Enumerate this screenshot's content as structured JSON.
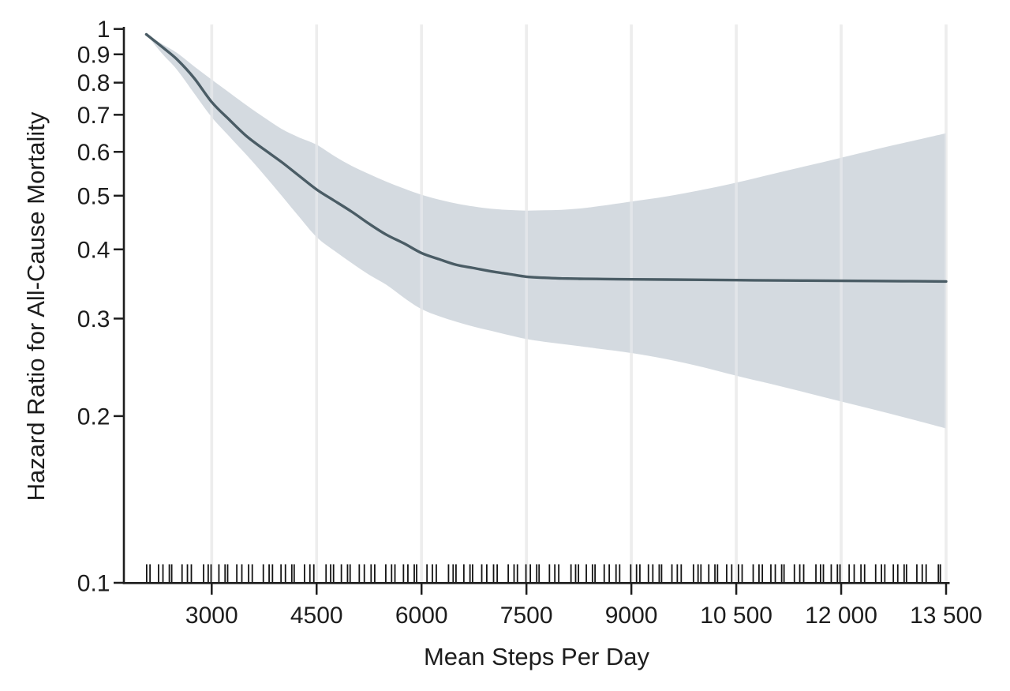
{
  "colors": {
    "background": "#ffffff",
    "curve": "#4a5c65",
    "band_fill": "#cdd3da",
    "band_opacity": 0.85,
    "gridline": "#e3e3e3",
    "axis": "#1d1d1d",
    "rug": "#141414",
    "text": "#1d1d1d"
  },
  "chart_data": {
    "type": "line",
    "title": "",
    "xlabel": "Mean Steps Per Day",
    "ylabel": "Hazard Ratio for All-Cause Mortality",
    "x_axis": {
      "scale": "linear",
      "domain": [
        1733,
        13557
      ],
      "ticks": [
        {
          "value": 3000,
          "label": "3000"
        },
        {
          "value": 4500,
          "label": "4500"
        },
        {
          "value": 6000,
          "label": "6000"
        },
        {
          "value": 7500,
          "label": "7500"
        },
        {
          "value": 9000,
          "label": "9000"
        },
        {
          "value": 10500,
          "label": "10 500"
        },
        {
          "value": 12000,
          "label": "12 000"
        },
        {
          "value": 13500,
          "label": "13 500"
        }
      ]
    },
    "y_axis": {
      "scale": "log10",
      "domain": [
        0.1,
        1
      ],
      "ticks": [
        {
          "value": 1.0,
          "label": "1"
        },
        {
          "value": 0.9,
          "label": "0.9"
        },
        {
          "value": 0.8,
          "label": "0.8"
        },
        {
          "value": 0.7,
          "label": "0.7"
        },
        {
          "value": 0.6,
          "label": "0.6"
        },
        {
          "value": 0.5,
          "label": "0.5"
        },
        {
          "value": 0.4,
          "label": "0.4"
        },
        {
          "value": 0.3,
          "label": "0.3"
        },
        {
          "value": 0.2,
          "label": "0.2"
        },
        {
          "value": 0.1,
          "label": "0.1"
        }
      ]
    },
    "grid": {
      "vertical_at_x_ticks": true,
      "horizontal": false
    },
    "legend": "none",
    "series": [
      {
        "name": "hazard-ratio-spline",
        "points": [
          [
            2065,
            0.978
          ],
          [
            2300,
            0.926
          ],
          [
            2500,
            0.882
          ],
          [
            2750,
            0.815
          ],
          [
            3000,
            0.738
          ],
          [
            3250,
            0.686
          ],
          [
            3500,
            0.64
          ],
          [
            3750,
            0.606
          ],
          [
            4000,
            0.575
          ],
          [
            4250,
            0.543
          ],
          [
            4500,
            0.513
          ],
          [
            4750,
            0.49
          ],
          [
            5000,
            0.468
          ],
          [
            5250,
            0.445
          ],
          [
            5500,
            0.425
          ],
          [
            5750,
            0.41
          ],
          [
            6000,
            0.394
          ],
          [
            6250,
            0.384
          ],
          [
            6500,
            0.375
          ],
          [
            6750,
            0.37
          ],
          [
            7000,
            0.365
          ],
          [
            7250,
            0.361
          ],
          [
            7500,
            0.357
          ],
          [
            7750,
            0.3555
          ],
          [
            8000,
            0.3545
          ],
          [
            8250,
            0.354
          ],
          [
            8500,
            0.3537
          ],
          [
            9000,
            0.3532
          ],
          [
            9500,
            0.3528
          ],
          [
            10000,
            0.3525
          ],
          [
            10500,
            0.352
          ],
          [
            11000,
            0.3516
          ],
          [
            11500,
            0.3513
          ],
          [
            12000,
            0.351
          ],
          [
            12500,
            0.3507
          ],
          [
            13000,
            0.3504
          ],
          [
            13500,
            0.35
          ]
        ]
      }
    ],
    "confidence_band": {
      "name": "95-percent-ci",
      "upper": [
        [
          2065,
          0.978
        ],
        [
          2300,
          0.938
        ],
        [
          2500,
          0.906
        ],
        [
          2750,
          0.856
        ],
        [
          3000,
          0.81
        ],
        [
          3250,
          0.768
        ],
        [
          3500,
          0.728
        ],
        [
          3750,
          0.692
        ],
        [
          4000,
          0.66
        ],
        [
          4250,
          0.637
        ],
        [
          4500,
          0.618
        ],
        [
          4750,
          0.59
        ],
        [
          5000,
          0.566
        ],
        [
          5250,
          0.547
        ],
        [
          5500,
          0.53
        ],
        [
          5750,
          0.515
        ],
        [
          6000,
          0.502
        ],
        [
          6250,
          0.492
        ],
        [
          6500,
          0.484
        ],
        [
          6750,
          0.478
        ],
        [
          7000,
          0.4735
        ],
        [
          7250,
          0.4712
        ],
        [
          7500,
          0.47
        ],
        [
          7750,
          0.4705
        ],
        [
          8000,
          0.4715
        ],
        [
          8250,
          0.474
        ],
        [
          8500,
          0.478
        ],
        [
          9000,
          0.488
        ],
        [
          9500,
          0.4985
        ],
        [
          10000,
          0.512
        ],
        [
          10500,
          0.528
        ],
        [
          11000,
          0.5465
        ],
        [
          11500,
          0.5655
        ],
        [
          12000,
          0.5855
        ],
        [
          12500,
          0.6065
        ],
        [
          13000,
          0.627
        ],
        [
          13500,
          0.648
        ]
      ],
      "lower": [
        [
          2065,
          0.978
        ],
        [
          2300,
          0.9
        ],
        [
          2500,
          0.845
        ],
        [
          2750,
          0.765
        ],
        [
          3000,
          0.693
        ],
        [
          3250,
          0.64
        ],
        [
          3500,
          0.592
        ],
        [
          3750,
          0.545
        ],
        [
          4000,
          0.5
        ],
        [
          4250,
          0.458
        ],
        [
          4500,
          0.421
        ],
        [
          4750,
          0.398
        ],
        [
          5000,
          0.378
        ],
        [
          5250,
          0.36
        ],
        [
          5500,
          0.345
        ],
        [
          5750,
          0.327
        ],
        [
          6000,
          0.312
        ],
        [
          6250,
          0.303
        ],
        [
          6500,
          0.296
        ],
        [
          6750,
          0.29
        ],
        [
          7000,
          0.285
        ],
        [
          7250,
          0.28
        ],
        [
          7500,
          0.2755
        ],
        [
          7750,
          0.2725
        ],
        [
          8000,
          0.27
        ],
        [
          8250,
          0.2675
        ],
        [
          8500,
          0.265
        ],
        [
          9000,
          0.26
        ],
        [
          9500,
          0.2535
        ],
        [
          10000,
          0.2455
        ],
        [
          10500,
          0.2365
        ],
        [
          11000,
          0.2285
        ],
        [
          11500,
          0.2205
        ],
        [
          12000,
          0.2125
        ],
        [
          12500,
          0.205
        ],
        [
          13000,
          0.1975
        ],
        [
          13500,
          0.19
        ]
      ]
    },
    "rug": {
      "name": "participant-step-counts",
      "steps": [
        2070,
        2118,
        2240,
        2303,
        2394,
        2428,
        2576,
        2653,
        2709,
        2884,
        2950,
        2991,
        3103,
        3191,
        3228,
        3359,
        3431,
        3528,
        3580,
        3738,
        3821,
        3869,
        3991,
        4054,
        4145,
        4179,
        4327,
        4404,
        4460,
        4635,
        4701,
        4742,
        4854,
        4942,
        4979,
        5110,
        5182,
        5279,
        5331,
        5489,
        5572,
        5620,
        5742,
        5805,
        5896,
        5930,
        6078,
        6155,
        6211,
        6386,
        6452,
        6493,
        6605,
        6693,
        6730,
        6861,
        6933,
        7030,
        7082,
        7240,
        7323,
        7371,
        7493,
        7556,
        7647,
        7681,
        7829,
        7906,
        7962,
        8137,
        8203,
        8244,
        8356,
        8444,
        8481,
        8612,
        8684,
        8781,
        8833,
        8991,
        9074,
        9122,
        9244,
        9307,
        9398,
        9432,
        9580,
        9657,
        9713,
        9888,
        9954,
        9995,
        10107,
        10195,
        10232,
        10363,
        10435,
        10532,
        10584,
        10742,
        10825,
        10873,
        10995,
        11058,
        11149,
        11183,
        11331,
        11408,
        11464,
        11639,
        11705,
        11746,
        11858,
        11946,
        11983,
        12114,
        12186,
        12283,
        12335,
        12493,
        12576,
        12624,
        12746,
        12809,
        12900,
        12934,
        13082,
        13159,
        13215,
        13390,
        13418
      ]
    }
  }
}
